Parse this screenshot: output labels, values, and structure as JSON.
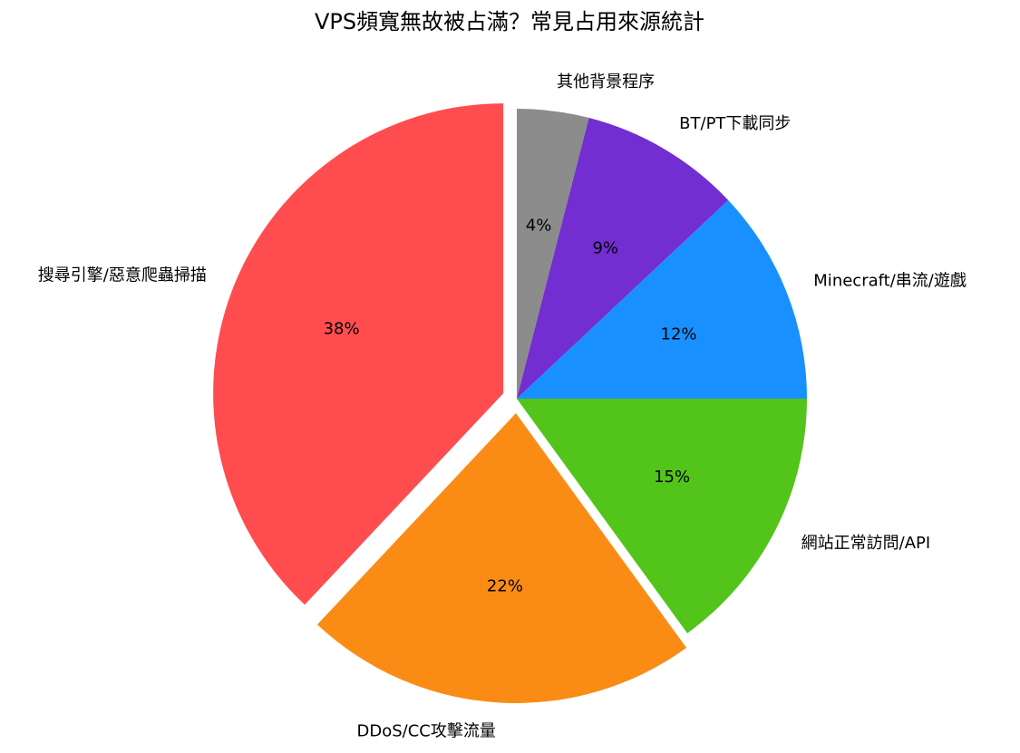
{
  "chart_data": {
    "type": "pie",
    "title": "VPS頻寬無故被占滿？常見占用來源統計",
    "categories": [
      "其他背景程序",
      "BT/PT下載同步",
      "Minecraft/串流/遊戲",
      "網站正常訪問/API",
      "DDoS/CC攻擊流量",
      "搜尋引擎/惡意爬蟲掃描"
    ],
    "values": [
      4,
      9,
      12,
      15,
      22,
      38
    ],
    "value_labels": [
      "4%",
      "9%",
      "12%",
      "15%",
      "22%",
      "38%"
    ],
    "colors": [
      "#8c8c8c",
      "#722ed1",
      "#1890ff",
      "#52c41a",
      "#fa8c16",
      "#ff4d4f"
    ],
    "explode": [
      0,
      0,
      0,
      0,
      0.05,
      0.05
    ]
  }
}
